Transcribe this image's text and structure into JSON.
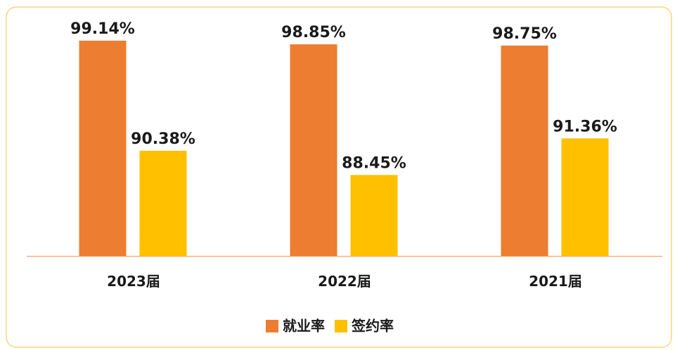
{
  "chart_data": {
    "type": "bar",
    "categories": [
      "2023届",
      "2022届",
      "2021届"
    ],
    "series": [
      {
        "name": "就业率",
        "color": "#ED7D31",
        "values": [
          99.14,
          98.85,
          98.75
        ],
        "value_labels": [
          "99.14%",
          "98.85%",
          "98.75%"
        ]
      },
      {
        "name": "签约率",
        "color": "#FFC000",
        "values": [
          90.38,
          88.45,
          91.36
        ],
        "value_labels": [
          "90.38%",
          "88.45%",
          "91.36%"
        ]
      }
    ],
    "ylim": [
      82,
      100
    ],
    "legend": "bottom"
  }
}
